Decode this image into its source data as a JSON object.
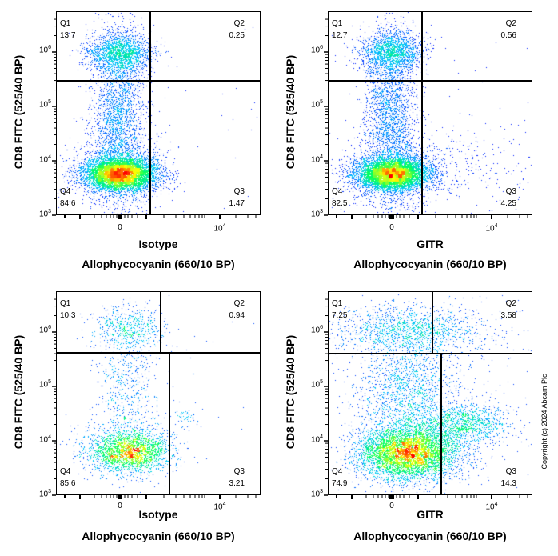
{
  "chart_data": [
    {
      "type": "scatter",
      "subtype": "density",
      "ylabel": "CD8 FITC (525/40 BP)",
      "xlabel_top": "Isotype",
      "xlabel": "Allophycocyanin (660/10 BP)",
      "y_scale": "log",
      "ylim": [
        1000,
        5000000
      ],
      "x_scale": "biexponential",
      "y_ticks": [
        {
          "base": "10",
          "exp": "6"
        },
        {
          "base": "10",
          "exp": "5"
        },
        {
          "base": "10",
          "exp": "4"
        },
        {
          "base": "10",
          "exp": "3"
        }
      ],
      "x_ticks": [
        {
          "base": "0",
          "exp": ""
        },
        {
          "base": "10",
          "exp": "4"
        }
      ],
      "quadrants": [
        {
          "name": "Q1",
          "value": "13.7"
        },
        {
          "name": "Q2",
          "value": "0.25"
        },
        {
          "name": "Q3",
          "value": "1.47"
        },
        {
          "name": "Q4",
          "value": "84.6"
        }
      ]
    },
    {
      "type": "scatter",
      "subtype": "density",
      "ylabel": "CD8 FITC (525/40 BP)",
      "xlabel_top": "GITR",
      "xlabel": "Allophycocyanin (660/10 BP)",
      "y_scale": "log",
      "ylim": [
        1000,
        5000000
      ],
      "x_scale": "biexponential",
      "y_ticks": [
        {
          "base": "10",
          "exp": "6"
        },
        {
          "base": "10",
          "exp": "5"
        },
        {
          "base": "10",
          "exp": "4"
        },
        {
          "base": "10",
          "exp": "3"
        }
      ],
      "x_ticks": [
        {
          "base": "0",
          "exp": ""
        },
        {
          "base": "10",
          "exp": "4"
        }
      ],
      "quadrants": [
        {
          "name": "Q1",
          "value": "12.7"
        },
        {
          "name": "Q2",
          "value": "0.56"
        },
        {
          "name": "Q3",
          "value": "4.25"
        },
        {
          "name": "Q4",
          "value": "82.5"
        }
      ]
    },
    {
      "type": "scatter",
      "subtype": "density",
      "ylabel": "CD8 FITC (525/40 BP)",
      "xlabel_top": "Isotype",
      "xlabel": "Allophycocyanin (660/10 BP)",
      "y_scale": "log",
      "ylim": [
        1000,
        5000000
      ],
      "x_scale": "biexponential",
      "y_ticks": [
        {
          "base": "10",
          "exp": "6"
        },
        {
          "base": "10",
          "exp": "5"
        },
        {
          "base": "10",
          "exp": "4"
        },
        {
          "base": "10",
          "exp": "3"
        }
      ],
      "x_ticks": [
        {
          "base": "0",
          "exp": ""
        },
        {
          "base": "10",
          "exp": "4"
        }
      ],
      "quadrants": [
        {
          "name": "Q1",
          "value": "10.3"
        },
        {
          "name": "Q2",
          "value": "0.94"
        },
        {
          "name": "Q3",
          "value": "3.21"
        },
        {
          "name": "Q4",
          "value": "85.6"
        }
      ]
    },
    {
      "type": "scatter",
      "subtype": "density",
      "ylabel": "CD8 FITC (525/40 BP)",
      "xlabel_top": "GITR",
      "xlabel": "Allophycocyanin (660/10 BP)",
      "y_scale": "log",
      "ylim": [
        1000,
        5000000
      ],
      "x_scale": "biexponential",
      "y_ticks": [
        {
          "base": "10",
          "exp": "6"
        },
        {
          "base": "10",
          "exp": "5"
        },
        {
          "base": "10",
          "exp": "4"
        },
        {
          "base": "10",
          "exp": "3"
        }
      ],
      "x_ticks": [
        {
          "base": "0",
          "exp": ""
        },
        {
          "base": "10",
          "exp": "4"
        }
      ],
      "quadrants": [
        {
          "name": "Q1",
          "value": "7.25"
        },
        {
          "name": "Q2",
          "value": "3.58"
        },
        {
          "name": "Q3",
          "value": "14.3"
        },
        {
          "name": "Q4",
          "value": "74.9"
        }
      ]
    }
  ],
  "colormap": [
    "#0000ff",
    "#00c8ff",
    "#00ff60",
    "#ffff00",
    "#ff0000"
  ],
  "copyright": "Copyright (c) 2024 Abcam Plc"
}
